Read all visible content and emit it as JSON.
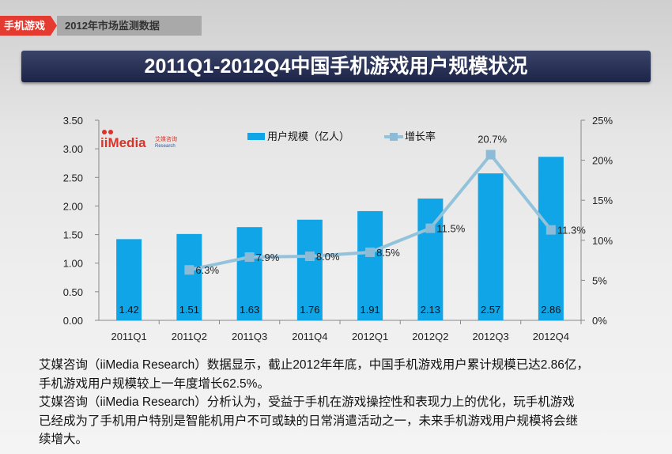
{
  "header": {
    "tag": "手机游戏",
    "subtitle": "2012年市场监测数据",
    "title": "2011Q1-2012Q4中国手机游戏用户规模状况"
  },
  "logo": {
    "text": "iiMedia",
    "cn": "艾媒咨询",
    "en": "Research"
  },
  "colors": {
    "bar": "#0fa5e6",
    "line": "#93c3db",
    "marker": "#8bbbd6"
  },
  "chart_data": {
    "type": "bar+line",
    "categories": [
      "2011Q1",
      "2011Q2",
      "2011Q3",
      "2011Q4",
      "2012Q1",
      "2012Q2",
      "2012Q3",
      "2012Q4"
    ],
    "series": [
      {
        "name": "用户规模（亿人）",
        "type": "bar",
        "axis": "left",
        "values": [
          1.42,
          1.51,
          1.63,
          1.76,
          1.91,
          2.13,
          2.57,
          2.86
        ],
        "labels": [
          "1.42",
          "1.51",
          "1.63",
          "1.76",
          "1.91",
          "2.13",
          "2.57",
          "2.86"
        ]
      },
      {
        "name": "增长率",
        "type": "line",
        "axis": "right",
        "values": [
          null,
          6.3,
          7.9,
          8.0,
          8.5,
          11.5,
          20.7,
          11.3
        ],
        "labels": [
          "",
          "6.3%",
          "7.9%",
          "8.0%",
          "8.5%",
          "11.5%",
          "20.7%",
          "11.3%"
        ]
      }
    ],
    "left_axis": {
      "ylim": [
        0,
        3.5
      ],
      "ticks": [
        "0.00",
        "0.50",
        "1.00",
        "1.50",
        "2.00",
        "2.50",
        "3.00",
        "3.50"
      ]
    },
    "right_axis": {
      "ylim": [
        0,
        25
      ],
      "ticks": [
        "0%",
        "5%",
        "10%",
        "15%",
        "20%",
        "25%"
      ]
    },
    "grid": false,
    "legend": "top"
  },
  "text": {
    "lines": [
      "艾媒咨询（iiMedia Research）数据显示，截止2012年年底，中国手机游戏用户累计规模已达2.86亿，",
      "手机游戏用户规模较上一年度增长62.5%。",
      "艾媒咨询（iiMedia Research）分析认为，受益于手机在游戏操控性和表现力上的优化，玩手机游戏",
      "已经成为了手机用户特别是智能机用户不可或缺的日常消遣活动之一，未来手机游戏用户规模将会继",
      "续增大。"
    ]
  }
}
